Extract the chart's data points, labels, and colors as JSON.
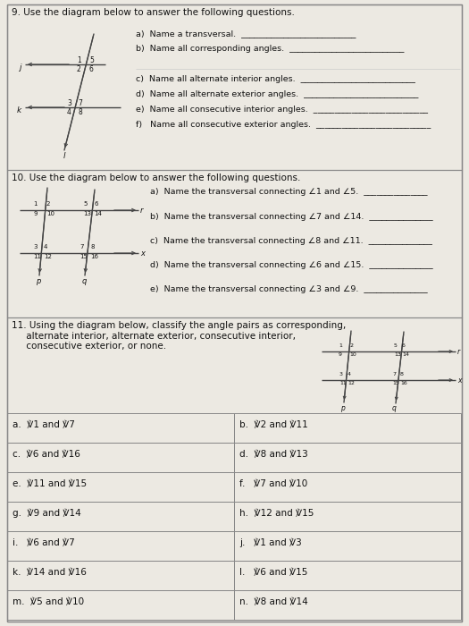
{
  "bg_color": "#ece9e2",
  "border_color": "#888888",
  "text_color": "#111111",
  "q9_header": "9. Use the diagram below to answer the following questions.",
  "q9_parts": [
    "a)  Name a transversal.  ___________________________",
    "b)  Name all corresponding angles.  ___________________________",
    "c)  Name all alternate interior angles.  ___________________________",
    "d)  Name all alternate exterior angles.  ___________________________",
    "e)  Name all consecutive interior angles.  ___________________________",
    "f)   Name all consecutive exterior angles.  ___________________________"
  ],
  "q10_header": "10. Use the diagram below to answer the following questions.",
  "q10_parts": [
    "a)  Name the transversal connecting ⇁1 and ⇁5.  _______________",
    "b)  Name the transversal connecting ⇁7 and ⇁14.  _______________",
    "c)  Name the transversal connecting ⇁8 and ⇁11.  _______________",
    "d)  Name the transversal connecting ⇁6 and ⇁15.  _______________",
    "e)  Name the transversal connecting ⇁3 and ⇁9.  _______________"
  ],
  "q11_header": "11. Using the diagram below, classify the angle pairs as corresponding,\n     alternate interior, alternate exterior, consecutive interior,\n     consecutive exterior, or none.",
  "q11_cells": [
    [
      "a.  ℣1 and ℣7",
      "b.  ℣2 and ℣11"
    ],
    [
      "c.  ℣6 and ℣16",
      "d.  ℣8 and ℣13"
    ],
    [
      "e.  ℣11 and ℣15",
      "f.   ℣7 and ℣10"
    ],
    [
      "g.  ℣9 and ℣14",
      "h.  ℣12 and ℣15"
    ],
    [
      "i.   ℣6 and ℣7",
      "j.   ℣1 and ℣3"
    ],
    [
      "k.  ℣14 and ℣16",
      "l.   ℣6 and ℣15"
    ],
    [
      "m.  ℣5 and ℣10",
      "n.  ℣8 and ℣14"
    ]
  ]
}
